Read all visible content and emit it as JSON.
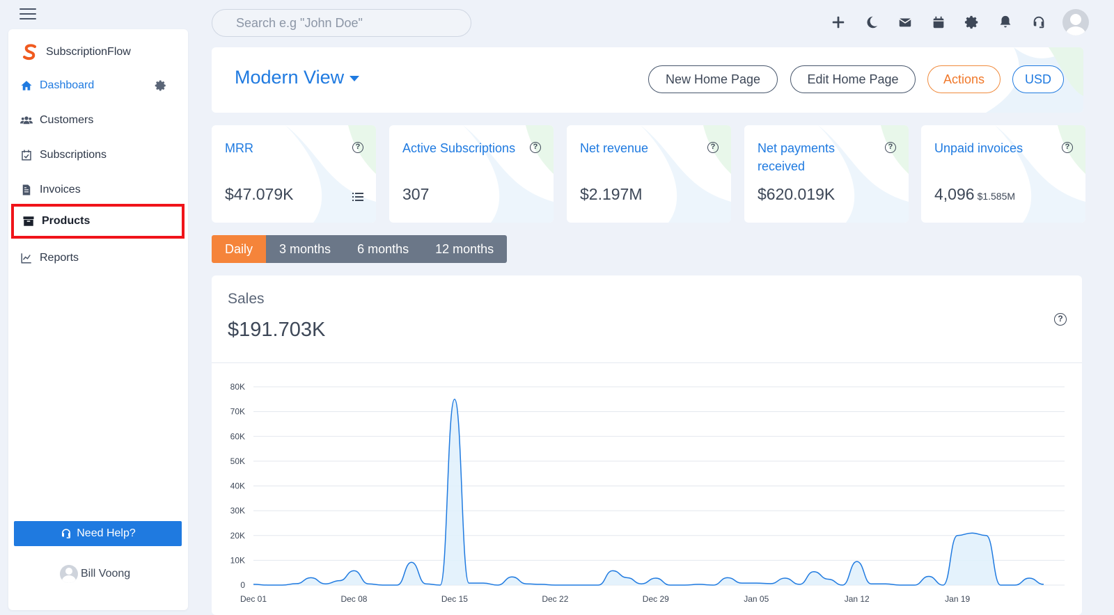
{
  "search": {
    "placeholder": "Search e.g \"John Doe\""
  },
  "sidebar": {
    "brand": "SubscriptionFlow",
    "items": [
      {
        "label": "Dashboard"
      },
      {
        "label": "Customers"
      },
      {
        "label": "Subscriptions"
      },
      {
        "label": "Invoices"
      },
      {
        "label": "Products"
      },
      {
        "label": "Reports"
      }
    ],
    "help_label": "Need Help?",
    "user_name": "Bill Voong"
  },
  "header": {
    "view_title": "Modern View",
    "buttons": {
      "new_home": "New Home Page",
      "edit_home": "Edit Home Page",
      "actions": "Actions",
      "currency": "USD"
    }
  },
  "cards": [
    {
      "title": "MRR",
      "value": "$47.079K"
    },
    {
      "title": "Active Subscriptions",
      "value": "307"
    },
    {
      "title": "Net revenue",
      "value": "$2.197M"
    },
    {
      "title": "Net payments received",
      "value": "$620.019K"
    },
    {
      "title": "Unpaid invoices",
      "value": "4,096",
      "sub": "$1.585M"
    }
  ],
  "periods": [
    "Daily",
    "3 months",
    "6 months",
    "12 months"
  ],
  "sales": {
    "label": "Sales",
    "value": "$191.703K"
  },
  "colors": {
    "accent": "#1f7ae0",
    "orange": "#f5843a",
    "highlight": "#f0141a"
  },
  "chart_data": {
    "type": "area",
    "x_ticks": [
      "Dec 01",
      "Dec 08",
      "Dec 15",
      "Dec 22",
      "Dec 29",
      "Jan 05",
      "Jan 12",
      "Jan 19"
    ],
    "y_ticks": [
      "0",
      "10K",
      "20K",
      "30K",
      "40K",
      "50K",
      "60K",
      "70K",
      "80K"
    ],
    "ylim": [
      0,
      80000
    ],
    "grid": true,
    "series": [
      {
        "values": [
          300,
          0,
          0,
          600,
          3000,
          500,
          1800,
          5800,
          500,
          0,
          0,
          9200,
          500,
          0,
          75000,
          800,
          800,
          0,
          3300,
          500,
          300,
          0,
          0,
          0,
          0,
          5800,
          3000,
          500,
          2800,
          0,
          0,
          300,
          0,
          3000,
          800,
          800,
          600,
          2800,
          300,
          5400,
          2400,
          0,
          9500,
          500,
          500,
          0,
          0,
          3500,
          0,
          20000,
          21000,
          20000,
          0,
          0,
          2800,
          300
        ]
      }
    ]
  }
}
